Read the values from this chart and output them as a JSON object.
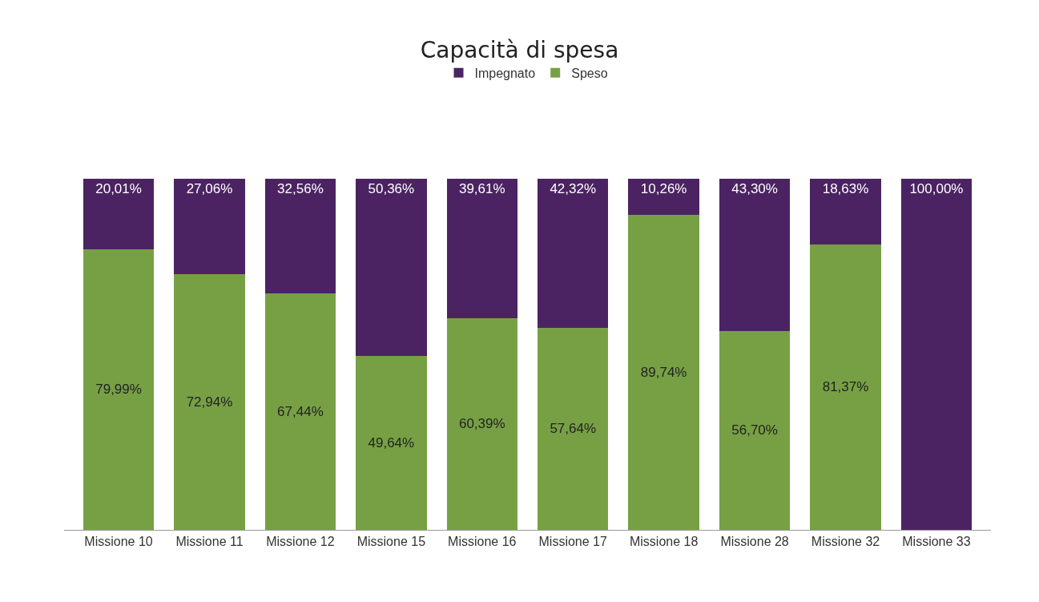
{
  "chart_data": {
    "type": "bar",
    "title": "Capacità di spesa",
    "stacked": true,
    "legend": "top",
    "categories": [
      "Missione 10",
      "Missione 11",
      "Missione 12",
      "Missione 15",
      "Missione 16",
      "Missione 17",
      "Missione 18",
      "Missione 28",
      "Missione 32",
      "Missione 33"
    ],
    "series": [
      {
        "name": "Speso",
        "color": "#77a045",
        "values": [
          79.99,
          72.94,
          67.44,
          49.64,
          60.39,
          57.64,
          89.74,
          56.7,
          81.37,
          0
        ],
        "value_labels": [
          "79,99%",
          "72,94%",
          "67,44%",
          "49,64%",
          "60,39%",
          "57,64%",
          "89,74%",
          "56,70%",
          "81,37%",
          null
        ]
      },
      {
        "name": "Impegnato",
        "color": "#4b2362",
        "values": [
          20.01,
          27.06,
          32.56,
          50.36,
          39.61,
          42.32,
          10.26,
          43.3,
          18.63,
          100.0
        ],
        "value_labels": [
          "20,01%",
          "27,06%",
          "32,56%",
          "50,36%",
          "39,61%",
          "42,32%",
          "10,26%",
          "43,30%",
          "18,63%",
          "100,00%"
        ]
      }
    ]
  }
}
